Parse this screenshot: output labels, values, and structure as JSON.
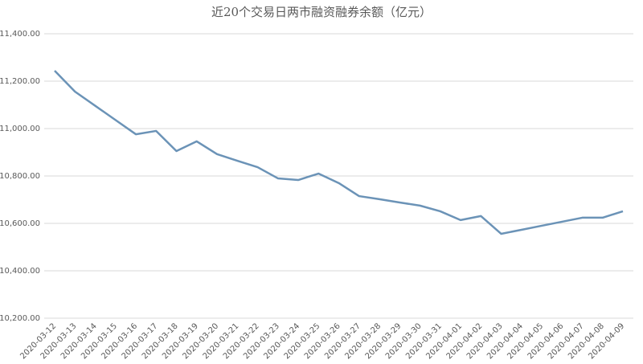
{
  "chart_data": {
    "type": "line",
    "title": "近20个交易日两市融资融券余额（亿元）",
    "categories": [
      "2020-03-12",
      "2020-03-13",
      "2020-03-14",
      "2020-03-15",
      "2020-03-16",
      "2020-03-17",
      "2020-03-18",
      "2020-03-19",
      "2020-03-20",
      "2020-03-21",
      "2020-03-22",
      "2020-03-23",
      "2020-03-24",
      "2020-03-25",
      "2020-03-26",
      "2020-03-27",
      "2020-03-28",
      "2020-03-29",
      "2020-03-30",
      "2020-03-31",
      "2020-04-01",
      "2020-04-02",
      "2020-04-03",
      "2020-04-04",
      "2020-04-05",
      "2020-04-06",
      "2020-04-07",
      "2020-04-08",
      "2020-04-09"
    ],
    "series": [
      {
        "color": "#6b93b7",
        "values": [
          11244,
          11156,
          11096,
          11036,
          10976,
          10990,
          10905,
          10946,
          10892,
          10864,
          10837,
          10790,
          10783,
          10810,
          10770,
          10715,
          10702,
          10688,
          10675,
          10651,
          10614,
          10631,
          10556,
          10573,
          10590,
          10607,
          10624,
          10624,
          10651
        ]
      }
    ],
    "ylim": [
      10200,
      11400
    ],
    "yticks": [
      {
        "value": 10200,
        "label": "10,200.00"
      },
      {
        "value": 10400,
        "label": "10,400.00"
      },
      {
        "value": 10600,
        "label": "10,600.00"
      },
      {
        "value": 10800,
        "label": "10,800.00"
      },
      {
        "value": 11000,
        "label": "11,000.00"
      },
      {
        "value": 11200,
        "label": "11,200.00"
      },
      {
        "value": 11400,
        "label": "11,400.00"
      }
    ],
    "grid": true
  }
}
